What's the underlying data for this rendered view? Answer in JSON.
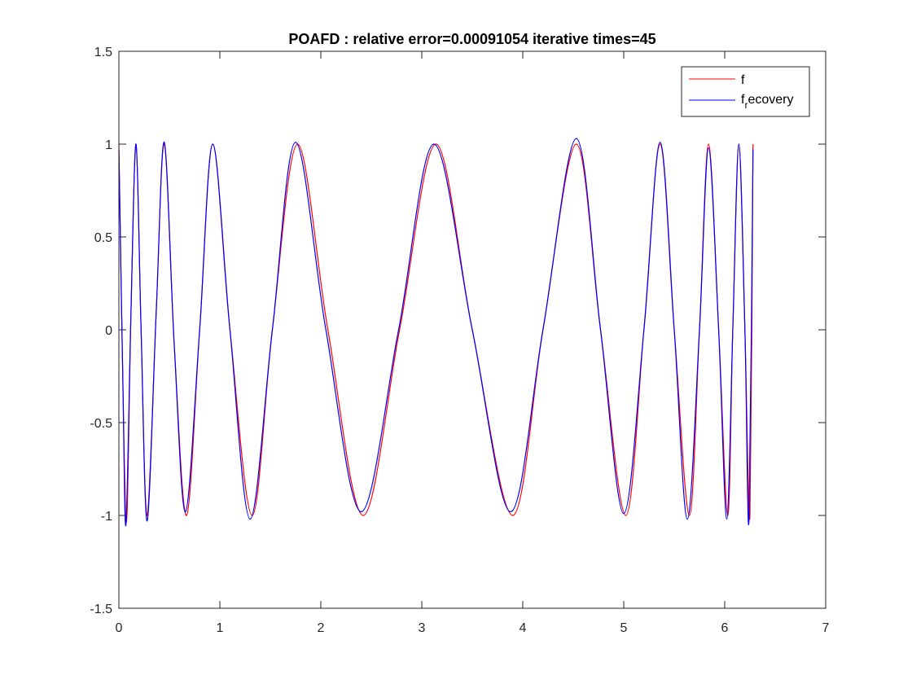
{
  "chart_data": {
    "type": "line",
    "title": "POAFD : relative error=0.00091054  iterative times=45",
    "xlabel": "",
    "ylabel": "",
    "xlim": [
      0,
      7
    ],
    "ylim": [
      -1.5,
      1.5
    ],
    "xticks": [
      "0",
      "1",
      "2",
      "3",
      "4",
      "5",
      "6",
      "7"
    ],
    "yticks": [
      "-1.5",
      "-1",
      "-0.5",
      "0",
      "0.5",
      "1",
      "1.5"
    ],
    "grid": false,
    "legend_position": "top-right",
    "series": [
      {
        "name": "f",
        "color": "#ff0000",
        "x": [
          0,
          0.05,
          0.08,
          0.12,
          0.17,
          0.22,
          0.28,
          0.37,
          0.45,
          0.55,
          0.67,
          0.8,
          0.93,
          1.1,
          1.32,
          1.52,
          1.77,
          2.07,
          2.42,
          2.78,
          3.14,
          3.5,
          3.9,
          4.2,
          4.53,
          4.77,
          5.02,
          5.2,
          5.36,
          5.5,
          5.65,
          5.75,
          5.84,
          5.94,
          6.03,
          6.08,
          6.14,
          6.2,
          6.25,
          6.28
        ],
        "y": [
          1.0,
          -0.6,
          -1.0,
          0.1,
          1.0,
          0.0,
          -1.0,
          0.1,
          1.0,
          -0.1,
          -1.0,
          0.0,
          1.0,
          0.0,
          -1.0,
          0.0,
          1.0,
          0.0,
          -1.0,
          0.0,
          1.0,
          0.0,
          -1.0,
          0.0,
          1.0,
          0.0,
          -1.0,
          0.0,
          1.0,
          0.0,
          -1.0,
          0.0,
          1.0,
          0.0,
          -1.0,
          0.0,
          1.0,
          0.0,
          -1.0,
          1.0
        ]
      },
      {
        "name": "f_recovery",
        "color": "#0000ff",
        "x": [
          0,
          0.04,
          0.07,
          0.12,
          0.17,
          0.22,
          0.28,
          0.37,
          0.45,
          0.55,
          0.66,
          0.8,
          0.93,
          1.1,
          1.3,
          1.52,
          1.75,
          2.05,
          2.4,
          2.77,
          3.12,
          3.5,
          3.88,
          4.2,
          4.53,
          4.77,
          5.0,
          5.2,
          5.36,
          5.5,
          5.63,
          5.75,
          5.84,
          5.94,
          6.02,
          6.08,
          6.14,
          6.2,
          6.24,
          6.28
        ],
        "y": [
          0.97,
          -0.3,
          -1.05,
          0.1,
          1.0,
          0.0,
          -1.03,
          0.1,
          1.01,
          -0.1,
          -0.98,
          0.0,
          1.0,
          0.0,
          -1.02,
          0.0,
          1.01,
          0.0,
          -0.98,
          0.0,
          1.0,
          0.0,
          -0.98,
          0.0,
          1.03,
          0.0,
          -0.99,
          0.0,
          1.01,
          0.0,
          -1.02,
          0.0,
          0.98,
          0.0,
          -1.02,
          0.0,
          1.0,
          0.0,
          -1.03,
          0.97
        ]
      }
    ],
    "legend": {
      "entries": [
        {
          "base": "f",
          "sub": "",
          "rest": ""
        },
        {
          "base": "f",
          "sub": "r",
          "rest": "ecovery"
        }
      ]
    }
  }
}
